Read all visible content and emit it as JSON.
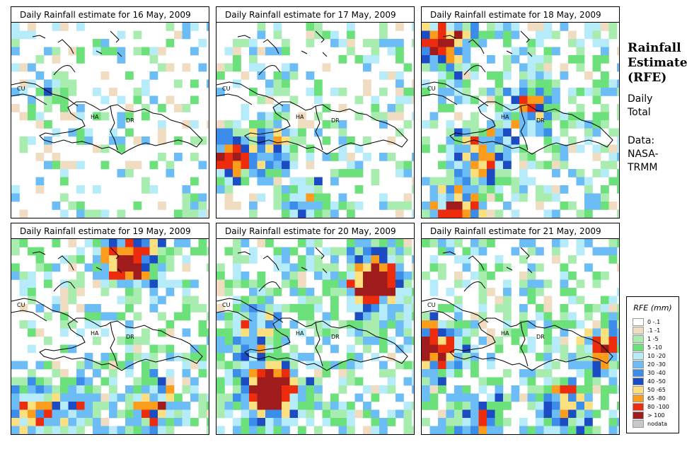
{
  "panels": [
    {
      "title": "Daily Rainfall estimate for  16 May, 2009",
      "seed": 16,
      "hotspots": [
        [
          5,
          8,
          1.2
        ],
        [
          22,
          24,
          1.4
        ]
      ],
      "density": 0.35
    },
    {
      "title": "Daily Rainfall estimate for  17 May, 2009",
      "seed": 17,
      "hotspots": [
        [
          1,
          16,
          4.5
        ],
        [
          6,
          15,
          3.2
        ],
        [
          10,
          22,
          2.4
        ]
      ],
      "density": 0.5
    },
    {
      "title": "Daily Rainfall estimate for  18 May, 2009",
      "seed": 18,
      "hotspots": [
        [
          2,
          2,
          4.0
        ],
        [
          4,
          22,
          3.5
        ],
        [
          13,
          10,
          3.0
        ],
        [
          7,
          16,
          3.0
        ]
      ],
      "density": 0.75
    },
    {
      "title": "Daily Rainfall estimate for  19 May, 2009",
      "seed": 19,
      "hotspots": [
        [
          14,
          2,
          5.5
        ],
        [
          2,
          21,
          3.0
        ],
        [
          17,
          20,
          3.0
        ],
        [
          7,
          20,
          2.6
        ]
      ],
      "density": 0.7
    },
    {
      "title": "Daily Rainfall estimate for  20 May, 2009",
      "seed": 20,
      "hotspots": [
        [
          19,
          5,
          6.0
        ],
        [
          6,
          18,
          6.5
        ],
        [
          4,
          11,
          2.5
        ]
      ],
      "density": 0.85
    },
    {
      "title": "Daily Rainfall estimate for  21 May, 2009",
      "seed": 21,
      "hotspots": [
        [
          1,
          13,
          5.0
        ],
        [
          17,
          20,
          3.0
        ],
        [
          22,
          13,
          2.8
        ],
        [
          7,
          22,
          2.2
        ]
      ],
      "density": 0.75
    }
  ],
  "country_labels": {
    "cu": "CU",
    "ha": "HA",
    "dr": "DR"
  },
  "side": {
    "title_lines": [
      "Rainfall",
      "Estimate",
      "(RFE)"
    ],
    "period_lines": [
      "Daily",
      "Total"
    ],
    "source_lines": [
      "Data:",
      "NASA-",
      "TRMM"
    ]
  },
  "legend": {
    "title": "RFE (mm)",
    "items": [
      {
        "label": "0 -.1",
        "color": "#ffffff"
      },
      {
        "label": ".1 -1",
        "color": "#f0dcc0"
      },
      {
        "label": "1 -5",
        "color": "#a8ecb0"
      },
      {
        "label": "5 -10",
        "color": "#6ce07a"
      },
      {
        "label": "10 -20",
        "color": "#b6ecfa"
      },
      {
        "label": "20 -30",
        "color": "#6cbcf6"
      },
      {
        "label": "30 -40",
        "color": "#3c8cea"
      },
      {
        "label": "40 -50",
        "color": "#1c4cc4"
      },
      {
        "label": "50 -65",
        "color": "#fce080"
      },
      {
        "label": "65 -80",
        "color": "#fc9c1c"
      },
      {
        "label": "80 -100",
        "color": "#ec2c0c"
      },
      {
        "label": "> 100",
        "color": "#a01c1c"
      },
      {
        "label": "nodata",
        "color": "#c8c8c8"
      }
    ]
  }
}
